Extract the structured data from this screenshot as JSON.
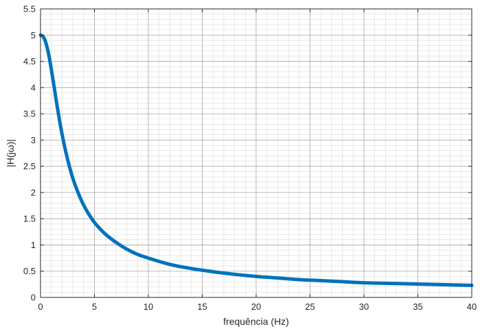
{
  "chart_data": {
    "type": "line",
    "title": "",
    "xlabel": "frequência (Hz)",
    "ylabel": "|H(jω)|",
    "xlim": [
      0,
      40
    ],
    "ylim": [
      0,
      5.5
    ],
    "xticks": [
      0,
      5,
      10,
      15,
      20,
      25,
      30,
      35,
      40
    ],
    "yticks": [
      0,
      0.5,
      1,
      1.5,
      2,
      2.5,
      3,
      3.5,
      4,
      4.5,
      5,
      5.5
    ],
    "xtick_labels": [
      "0",
      "5",
      "10",
      "15",
      "20",
      "25",
      "30",
      "35",
      "40"
    ],
    "ytick_labels": [
      "0",
      "0.5",
      "1",
      "1.5",
      "2",
      "2.5",
      "3",
      "3.5",
      "4",
      "4.5",
      "5",
      "5.5"
    ],
    "grid": true,
    "minor_grid": true,
    "series": [
      {
        "color": "#0072BD",
        "x": [
          0,
          0.25,
          0.5,
          0.75,
          1,
          1.25,
          1.5,
          1.75,
          2,
          2.5,
          3,
          3.5,
          4,
          4.5,
          5,
          6,
          7,
          8,
          9,
          10,
          12,
          14,
          16,
          18,
          20,
          22,
          24,
          26,
          28,
          30,
          32,
          34,
          36,
          38,
          40
        ],
        "y": [
          5.0,
          4.97,
          4.85,
          4.64,
          4.35,
          4.03,
          3.7,
          3.39,
          3.11,
          2.64,
          2.27,
          1.99,
          1.76,
          1.58,
          1.43,
          1.21,
          1.05,
          0.92,
          0.82,
          0.75,
          0.63,
          0.55,
          0.49,
          0.44,
          0.4,
          0.37,
          0.34,
          0.32,
          0.3,
          0.28,
          0.27,
          0.26,
          0.25,
          0.24,
          0.23
        ]
      }
    ]
  }
}
